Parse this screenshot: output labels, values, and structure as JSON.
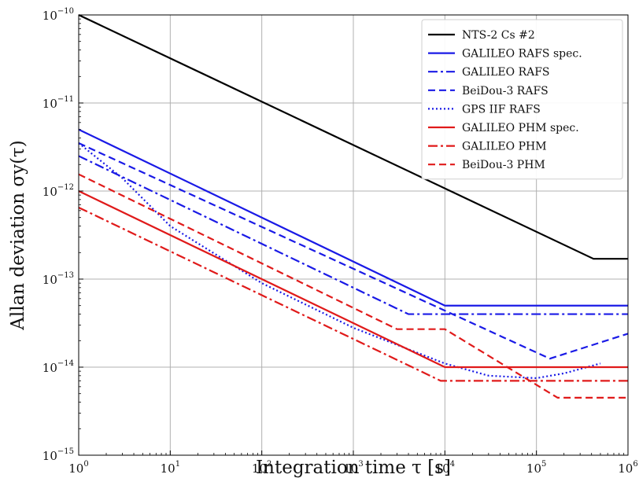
{
  "chart_data": {
    "type": "line",
    "title": "",
    "xlabel": "Integration time τ [s]",
    "ylabel": "Allan deviation σy(τ)",
    "xscale": "log",
    "yscale": "log",
    "xlim": [
      1,
      1000000
    ],
    "ylim": [
      1e-15,
      1e-10
    ],
    "x_ticks": [
      {
        "base": "10",
        "exp": "0"
      },
      {
        "base": "10",
        "exp": "1"
      },
      {
        "base": "10",
        "exp": "2"
      },
      {
        "base": "10",
        "exp": "3"
      },
      {
        "base": "10",
        "exp": "4"
      },
      {
        "base": "10",
        "exp": "5"
      },
      {
        "base": "10",
        "exp": "6"
      }
    ],
    "y_ticks": [
      {
        "base": "10",
        "exp": "−15"
      },
      {
        "base": "10",
        "exp": "−14"
      },
      {
        "base": "10",
        "exp": "−13"
      },
      {
        "base": "10",
        "exp": "−12"
      },
      {
        "base": "10",
        "exp": "−11"
      },
      {
        "base": "10",
        "exp": "−10"
      }
    ],
    "grid": true,
    "legend_position": "top-right",
    "series": [
      {
        "name": "NTS-2 Cs #2",
        "color": "#000000",
        "dash": "solid",
        "points": [
          [
            1,
            1e-10
          ],
          [
            420000,
            1.7e-13
          ],
          [
            1000000,
            1.7e-13
          ]
        ]
      },
      {
        "name": "GALILEO RAFS spec.",
        "color": "#1a1ae6",
        "dash": "solid",
        "points": [
          [
            1,
            5e-12
          ],
          [
            10000,
            5e-14
          ],
          [
            1000000,
            5e-14
          ]
        ]
      },
      {
        "name": "GALILEO RAFS",
        "color": "#1a1ae6",
        "dash": "dashdot",
        "points": [
          [
            1,
            2.5e-12
          ],
          [
            4000,
            4e-14
          ],
          [
            1000000,
            4e-14
          ]
        ]
      },
      {
        "name": "BeiDou-3 RAFS",
        "color": "#1a1ae6",
        "dash": "dashed",
        "points": [
          [
            1,
            3.5e-12
          ],
          [
            140000,
            1.25e-14
          ],
          [
            1000000,
            2.4e-14
          ]
        ]
      },
      {
        "name": "GPS IIF RAFS",
        "color": "#1a1ae6",
        "dash": "dotted",
        "points": [
          [
            1,
            3.5e-12
          ],
          [
            3,
            1.4e-12
          ],
          [
            10,
            4e-13
          ],
          [
            100,
            9e-14
          ],
          [
            1000,
            2.8e-14
          ],
          [
            10000,
            1.1e-14
          ],
          [
            30000,
            8e-15
          ],
          [
            100000,
            7.5e-15
          ],
          [
            200000,
            8.5e-15
          ],
          [
            500000,
            1.1e-14
          ]
        ]
      },
      {
        "name": "GALILEO PHM spec.",
        "color": "#e01a1a",
        "dash": "solid",
        "points": [
          [
            1,
            1e-12
          ],
          [
            10000,
            1e-14
          ],
          [
            1000000,
            1e-14
          ]
        ]
      },
      {
        "name": "GALILEO PHM",
        "color": "#e01a1a",
        "dash": "dashdot",
        "points": [
          [
            1,
            6.5e-13
          ],
          [
            9000,
            7e-15
          ],
          [
            1000000,
            7e-15
          ]
        ]
      },
      {
        "name": "BeiDou-3 PHM",
        "color": "#e01a1a",
        "dash": "dashed",
        "points": [
          [
            1,
            1.55e-12
          ],
          [
            3000,
            2.7e-14
          ],
          [
            10000,
            2.7e-14
          ],
          [
            170000,
            4.5e-15
          ],
          [
            1000000,
            4.5e-15
          ]
        ]
      }
    ]
  }
}
